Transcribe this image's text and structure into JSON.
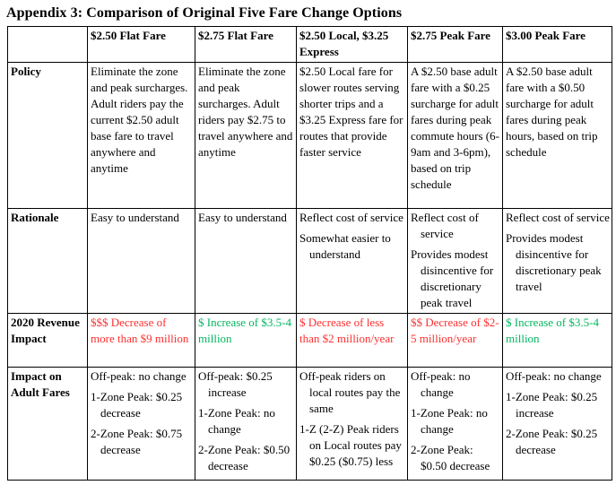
{
  "title": "Appendix 3: Comparison of Original Five Fare Change Options",
  "colors": {
    "decrease_text": "#ff2f2f",
    "increase_text": "#00b860",
    "body_text": "#000000",
    "border": "#000000",
    "background": "#ffffff"
  },
  "table": {
    "columns": [
      "",
      "$2.50 Flat Fare",
      "$2.75 Flat Fare",
      "$2.50 Local, $3.25 Express",
      "$2.75 Peak Fare",
      "$3.00 Peak Fare"
    ],
    "rows": [
      {
        "key": "policy",
        "label": "Policy",
        "cells": [
          {
            "paragraphs": [
              "Eliminate the zone and peak surcharges. Adult riders pay the current $2.50 adult base fare to travel anywhere and anytime"
            ],
            "tone": null,
            "hang": false
          },
          {
            "paragraphs": [
              "Eliminate the zone and peak surcharges. Adult riders pay $2.75 to travel anywhere and anytime"
            ],
            "tone": null,
            "hang": false
          },
          {
            "paragraphs": [
              "$2.50 Local fare for slower routes serving shorter trips and a $3.25 Express fare for routes that provide faster service"
            ],
            "tone": null,
            "hang": false
          },
          {
            "paragraphs": [
              "A $2.50 base adult fare with a $0.25 surcharge for adult fares during peak commute hours (6-9am and 3-6pm), based on trip schedule"
            ],
            "tone": null,
            "hang": false
          },
          {
            "paragraphs": [
              "A $2.50 base adult fare with a $0.50 surcharge for adult fares during peak hours, based on trip schedule"
            ],
            "tone": null,
            "hang": false
          }
        ]
      },
      {
        "key": "rationale",
        "label": "Rationale",
        "cells": [
          {
            "paragraphs": [
              "Easy to understand"
            ],
            "tone": null,
            "hang": true
          },
          {
            "paragraphs": [
              "Easy to understand"
            ],
            "tone": null,
            "hang": true
          },
          {
            "paragraphs": [
              "Reflect cost of service",
              "Somewhat easier to understand"
            ],
            "tone": null,
            "hang": true
          },
          {
            "paragraphs": [
              "Reflect cost of service",
              "Provides modest disincentive for discretionary peak travel"
            ],
            "tone": null,
            "hang": true
          },
          {
            "paragraphs": [
              "Reflect cost of service",
              "Provides modest disincentive for discretionary peak travel"
            ],
            "tone": null,
            "hang": true
          }
        ]
      },
      {
        "key": "revenue",
        "label": "2020 Revenue Impact",
        "cells": [
          {
            "paragraphs": [
              "$$$ Decrease of more than $9 million"
            ],
            "tone": "decrease",
            "hang": false
          },
          {
            "paragraphs": [
              "$ Increase of $3.5-4 million"
            ],
            "tone": "increase",
            "hang": false
          },
          {
            "paragraphs": [
              "$ Decrease of less than $2 million/year"
            ],
            "tone": "decrease",
            "hang": false
          },
          {
            "paragraphs": [
              "$$ Decrease of $2-5 million/year"
            ],
            "tone": "decrease",
            "hang": false
          },
          {
            "paragraphs": [
              "$ Increase of $3.5-4 million"
            ],
            "tone": "increase",
            "hang": false
          }
        ]
      },
      {
        "key": "impact",
        "label": "Impact on Adult Fares",
        "cells": [
          {
            "paragraphs": [
              "Off-peak: no change",
              "1-Zone Peak: $0.25 decrease",
              "2-Zone Peak: $0.75 decrease"
            ],
            "tone": null,
            "hang": true
          },
          {
            "paragraphs": [
              "Off-peak: $0.25 increase",
              "1-Zone Peak: no change",
              "2-Zone Peak: $0.50 decrease"
            ],
            "tone": null,
            "hang": true
          },
          {
            "paragraphs": [
              "Off-peak riders on local routes pay the same",
              "1-Z (2-Z) Peak riders on Local routes pay $0.25 ($0.75) less"
            ],
            "tone": null,
            "hang": true
          },
          {
            "paragraphs": [
              "Off-peak: no change",
              "1-Zone Peak: no change",
              "2-Zone Peak: $0.50 decrease"
            ],
            "tone": null,
            "hang": true
          },
          {
            "paragraphs": [
              "Off-peak: no change",
              "1-Zone Peak: $0.25 increase",
              "2-Zone Peak: $0.25 decrease"
            ],
            "tone": null,
            "hang": true
          }
        ]
      }
    ]
  }
}
